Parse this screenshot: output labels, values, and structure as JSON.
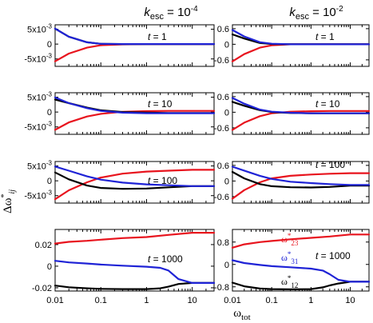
{
  "colors": {
    "w12": "#000000",
    "w23": "#e8141e",
    "w31": "#1f23d6"
  },
  "labels": {
    "ylabel": "Δω*ij",
    "xlabel": "ωtot",
    "col_titles": [
      "kesc = 10-4",
      "kesc = 10-2"
    ],
    "legend": {
      "w23": "ω*23",
      "w31": "ω*31",
      "w12": "ω*12"
    }
  },
  "chart_data": {
    "type": "line",
    "xscale": "log",
    "xlim": [
      0.01,
      30
    ],
    "xticks": [
      "0.01",
      "0.1",
      "1",
      "10"
    ],
    "xlabel": "ωtot",
    "ylabel": "Δω*ij",
    "series_names": [
      "ω*12",
      "ω*23",
      "ω*31"
    ],
    "panels": [
      {
        "id": "A1",
        "title": "kesc = 10-4",
        "annotation": "t = 1",
        "ylim": [
          -0.0075,
          0.0065
        ],
        "yticks": [
          {
            "v": 0.005,
            "t": "5x10-3"
          },
          {
            "v": 0,
            "t": "0"
          },
          {
            "v": -0.005,
            "t": "-5x10-3"
          }
        ],
        "series": [
          {
            "name": "ω*12",
            "color": "w12",
            "x": [
              0.01,
              0.02,
              0.05,
              0.1,
              0.3,
              1,
              30
            ],
            "y": [
              0.0052,
              0.0025,
              0.0006,
              0.0001,
              0,
              0,
              0
            ]
          },
          {
            "name": "ω*23",
            "color": "w23",
            "x": [
              0.01,
              0.02,
              0.05,
              0.1,
              0.3,
              1,
              30
            ],
            "y": [
              -0.0058,
              -0.0032,
              -0.0012,
              -0.0004,
              -0.0001,
              0,
              0
            ]
          },
          {
            "name": "ω*31",
            "color": "w31",
            "x": [
              0.01,
              0.02,
              0.05,
              0.1,
              0.3,
              1,
              30
            ],
            "y": [
              0.0052,
              0.0025,
              0.0006,
              0.0001,
              0,
              0,
              0
            ]
          }
        ]
      },
      {
        "id": "A2",
        "annotation": "t = 10",
        "ylim": [
          -0.0075,
          0.0065
        ],
        "yticks": [
          {
            "v": 0.005,
            "t": "5x10-3"
          },
          {
            "v": 0,
            "t": "0"
          },
          {
            "v": -0.005,
            "t": "-5x10-3"
          }
        ],
        "series": [
          {
            "name": "ω*12",
            "color": "w12",
            "x": [
              0.01,
              0.02,
              0.05,
              0.1,
              0.3,
              1,
              3,
              10,
              30
            ],
            "y": [
              0.0042,
              0.003,
              0.0015,
              0.0006,
              0,
              -0.0002,
              -0.0003,
              -0.0003,
              -0.0003
            ]
          },
          {
            "name": "ω*23",
            "color": "w23",
            "x": [
              0.01,
              0.02,
              0.05,
              0.1,
              0.3,
              1,
              3,
              10,
              30
            ],
            "y": [
              -0.006,
              -0.0035,
              -0.0015,
              -0.0006,
              0.0001,
              0.0003,
              0.0004,
              0.0004,
              0.0004
            ]
          },
          {
            "name": "ω*31",
            "color": "w31",
            "x": [
              0.01,
              0.02,
              0.05,
              0.1,
              0.3,
              1,
              3,
              10,
              30
            ],
            "y": [
              0.0049,
              0.003,
              0.0013,
              0.0004,
              -0.0002,
              -0.0004,
              -0.0004,
              -0.0004,
              -0.0004
            ]
          }
        ]
      },
      {
        "id": "A3",
        "annotation": "t = 100",
        "ylim": [
          -0.0075,
          0.0065
        ],
        "yticks": [
          {
            "v": 0.005,
            "t": "5x10-3"
          },
          {
            "v": 0,
            "t": "0"
          },
          {
            "v": -0.005,
            "t": "-5x10-3"
          }
        ],
        "series": [
          {
            "name": "ω*12",
            "color": "w12",
            "x": [
              0.01,
              0.02,
              0.05,
              0.1,
              0.3,
              1,
              3,
              10,
              30
            ],
            "y": [
              0.0028,
              0.0005,
              -0.0016,
              -0.0024,
              -0.0027,
              -0.0026,
              -0.0022,
              -0.0018,
              -0.0018
            ]
          },
          {
            "name": "ω*23",
            "color": "w23",
            "x": [
              0.01,
              0.02,
              0.05,
              0.1,
              0.3,
              1,
              3,
              10,
              30
            ],
            "y": [
              -0.0062,
              -0.0032,
              -0.0005,
              0.0011,
              0.0024,
              0.0031,
              0.0034,
              0.0037,
              0.0037
            ]
          },
          {
            "name": "ω*31",
            "color": "w31",
            "x": [
              0.01,
              0.02,
              0.05,
              0.1,
              0.3,
              1,
              3,
              10,
              30
            ],
            "y": [
              0.0048,
              0.0034,
              0.0015,
              0.0004,
              -0.0006,
              -0.0012,
              -0.0015,
              -0.0018,
              -0.0018
            ]
          }
        ]
      },
      {
        "id": "A4",
        "annotation": "t = 1000",
        "ylim": [
          -0.023,
          0.034
        ],
        "yticks": [
          {
            "v": 0.02,
            "t": "0.02"
          },
          {
            "v": 0,
            "t": "0"
          },
          {
            "v": -0.02,
            "t": "-0.02"
          }
        ],
        "series": [
          {
            "name": "ω*12",
            "color": "w12",
            "x": [
              0.01,
              0.02,
              0.05,
              0.1,
              0.3,
              1,
              2,
              3,
              5,
              10,
              30
            ],
            "y": [
              -0.018,
              -0.0195,
              -0.0205,
              -0.021,
              -0.0212,
              -0.0212,
              -0.0205,
              -0.019,
              -0.0165,
              -0.0155,
              -0.0155
            ]
          },
          {
            "name": "ω*23",
            "color": "w23",
            "x": [
              0.01,
              0.02,
              0.05,
              0.1,
              0.3,
              1,
              3,
              10,
              30
            ],
            "y": [
              0.021,
              0.0225,
              0.0235,
              0.0245,
              0.026,
              0.027,
              0.029,
              0.031,
              0.031
            ]
          },
          {
            "name": "ω*31",
            "color": "w31",
            "x": [
              0.01,
              0.02,
              0.05,
              0.1,
              0.3,
              1,
              2,
              3,
              5,
              10,
              30
            ],
            "y": [
              0.005,
              0.0035,
              0.0025,
              0.0015,
              0.0005,
              -0.0005,
              -0.0015,
              -0.004,
              -0.012,
              -0.0155,
              -0.0155
            ]
          }
        ]
      },
      {
        "id": "B1",
        "title": "kesc = 10-2",
        "annotation": "t = 1",
        "ylim": [
          -0.85,
          0.75
        ],
        "yticks": [
          {
            "v": 0.6,
            "t": "0.6"
          },
          {
            "v": 0,
            "t": "0"
          },
          {
            "v": -0.6,
            "t": "-0.6"
          }
        ],
        "series": [
          {
            "name": "ω*12",
            "color": "w12",
            "x": [
              0.01,
              0.02,
              0.05,
              0.1,
              0.3,
              1,
              30
            ],
            "y": [
              0.38,
              0.22,
              0.05,
              0.01,
              0,
              0,
              0
            ]
          },
          {
            "name": "ω*23",
            "color": "w23",
            "x": [
              0.01,
              0.02,
              0.05,
              0.1,
              0.3,
              1,
              30
            ],
            "y": [
              -0.66,
              -0.38,
              -0.13,
              -0.04,
              0,
              0,
              0
            ]
          },
          {
            "name": "ω*31",
            "color": "w31",
            "x": [
              0.01,
              0.02,
              0.05,
              0.1,
              0.3,
              1,
              30
            ],
            "y": [
              0.55,
              0.3,
              0.08,
              0.02,
              0,
              0,
              0
            ]
          }
        ]
      },
      {
        "id": "B2",
        "annotation": "t = 10",
        "ylim": [
          -0.85,
          0.75
        ],
        "yticks": [
          {
            "v": 0.6,
            "t": "0.6"
          },
          {
            "v": 0,
            "t": "0"
          },
          {
            "v": -0.6,
            "t": "-0.6"
          }
        ],
        "series": [
          {
            "name": "ω*12",
            "color": "w12",
            "x": [
              0.01,
              0.02,
              0.05,
              0.1,
              0.3,
              1,
              3,
              10,
              30
            ],
            "y": [
              0.4,
              0.25,
              0.08,
              0.01,
              -0.03,
              -0.04,
              -0.04,
              -0.04,
              -0.04
            ]
          },
          {
            "name": "ω*23",
            "color": "w23",
            "x": [
              0.01,
              0.02,
              0.05,
              0.1,
              0.3,
              1,
              3,
              10,
              30
            ],
            "y": [
              -0.68,
              -0.4,
              -0.15,
              -0.04,
              0.02,
              0.04,
              0.05,
              0.05,
              0.05
            ]
          },
          {
            "name": "ω*31",
            "color": "w31",
            "x": [
              0.01,
              0.02,
              0.05,
              0.1,
              0.3,
              1,
              3,
              10,
              30
            ],
            "y": [
              0.55,
              0.33,
              0.1,
              0.02,
              -0.02,
              -0.04,
              -0.04,
              -0.04,
              -0.04
            ]
          }
        ]
      },
      {
        "id": "B3",
        "annotation": "t = 100",
        "ylim": [
          -0.85,
          0.75
        ],
        "yticks": [
          {
            "v": 0.6,
            "t": "0.6"
          },
          {
            "v": 0,
            "t": "0"
          },
          {
            "v": -0.6,
            "t": "-0.6"
          }
        ],
        "series": [
          {
            "name": "ω*12",
            "color": "w12",
            "x": [
              0.01,
              0.02,
              0.05,
              0.1,
              0.3,
              1,
              3,
              10,
              30
            ],
            "y": [
              0.35,
              0.1,
              -0.12,
              -0.2,
              -0.24,
              -0.25,
              -0.23,
              -0.18,
              -0.18
            ]
          },
          {
            "name": "ω*23",
            "color": "w23",
            "x": [
              0.01,
              0.02,
              0.05,
              0.1,
              0.3,
              1,
              3,
              10,
              30
            ],
            "y": [
              -0.68,
              -0.35,
              -0.05,
              0.1,
              0.2,
              0.25,
              0.28,
              0.3,
              0.3
            ]
          },
          {
            "name": "ω*31",
            "color": "w31",
            "x": [
              0.01,
              0.02,
              0.05,
              0.1,
              0.3,
              1,
              3,
              10,
              30
            ],
            "y": [
              0.55,
              0.4,
              0.2,
              0.08,
              -0.03,
              -0.08,
              -0.12,
              -0.15,
              -0.15
            ]
          }
        ]
      },
      {
        "id": "B4",
        "annotation": "t = 1000",
        "ylim": [
          -0.95,
          1.25
        ],
        "yticks": [
          {
            "v": 0.8,
            "t": "0.8"
          },
          {
            "v": 0,
            "t": "0"
          },
          {
            "v": -0.8,
            "t": "-0.8"
          }
        ],
        "series": [
          {
            "name": "ω*12",
            "color": "w12",
            "x": [
              0.01,
              0.02,
              0.05,
              0.1,
              0.3,
              1,
              2,
              3,
              5,
              10,
              30
            ],
            "y": [
              -0.65,
              -0.78,
              -0.86,
              -0.88,
              -0.89,
              -0.88,
              -0.82,
              -0.75,
              -0.68,
              -0.62,
              -0.62
            ]
          },
          {
            "name": "ω*23",
            "color": "w23",
            "x": [
              0.01,
              0.02,
              0.05,
              0.1,
              0.3,
              1,
              3,
              10,
              30
            ],
            "y": [
              0.6,
              0.72,
              0.8,
              0.84,
              0.9,
              0.95,
              1.0,
              1.07,
              1.07
            ]
          },
          {
            "name": "ω*31",
            "color": "w31",
            "x": [
              0.01,
              0.02,
              0.05,
              0.1,
              0.3,
              1,
              2,
              3,
              5,
              10,
              30
            ],
            "y": [
              0.15,
              0.05,
              -0.02,
              -0.06,
              -0.1,
              -0.15,
              -0.22,
              -0.35,
              -0.55,
              -0.62,
              -0.62
            ]
          }
        ]
      }
    ]
  }
}
